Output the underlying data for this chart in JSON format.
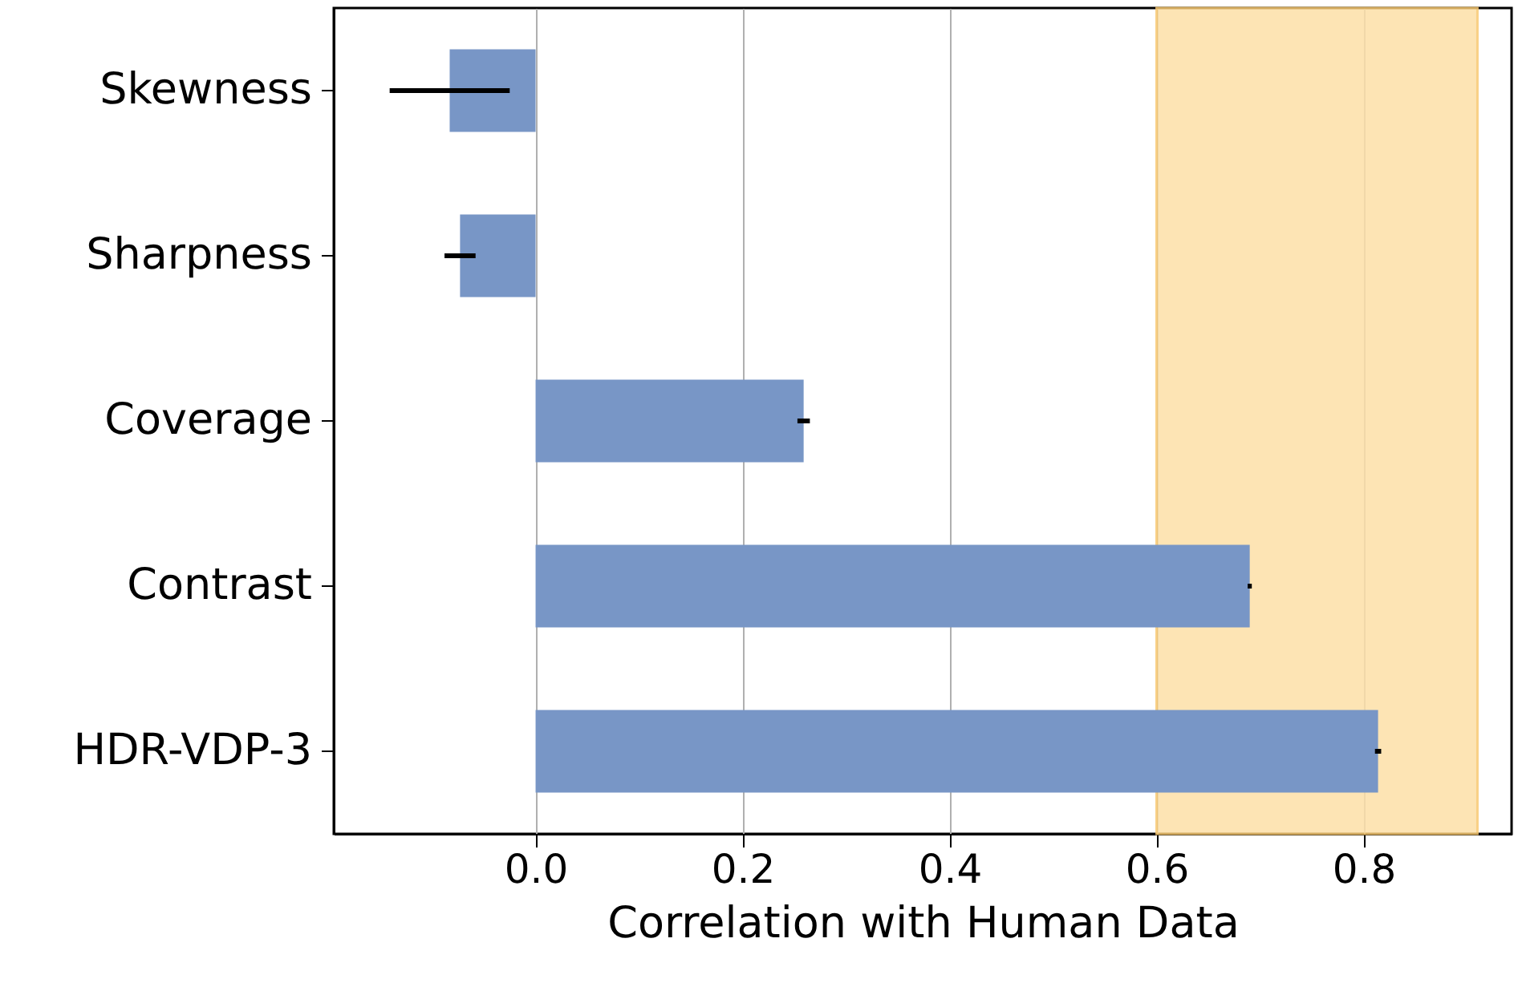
{
  "chart_data": {
    "type": "bar",
    "orientation": "horizontal",
    "xlabel": "Correlation with Human Data",
    "categories": [
      "Skewness",
      "Sharpness",
      "Coverage",
      "Contrast",
      "HDR-VDP-3"
    ],
    "values": [
      -0.083,
      -0.073,
      0.259,
      0.69,
      0.814
    ],
    "errors": [
      0.058,
      0.015,
      0.006,
      0.002,
      0.003
    ],
    "color": "#7896c6",
    "xlim": [
      -0.195,
      0.943
    ],
    "xticks": [
      {
        "value": 0,
        "label": "0.0"
      },
      {
        "value": 0.2,
        "label": "0.2"
      },
      {
        "value": 0.4,
        "label": "0.4"
      },
      {
        "value": 0.6,
        "label": "0.6"
      },
      {
        "value": 0.8,
        "label": "0.8"
      }
    ],
    "grid": "x",
    "bands": [
      {
        "axis": "x",
        "from": 0.6,
        "to": 0.91,
        "color": "#fde0a8"
      }
    ]
  }
}
